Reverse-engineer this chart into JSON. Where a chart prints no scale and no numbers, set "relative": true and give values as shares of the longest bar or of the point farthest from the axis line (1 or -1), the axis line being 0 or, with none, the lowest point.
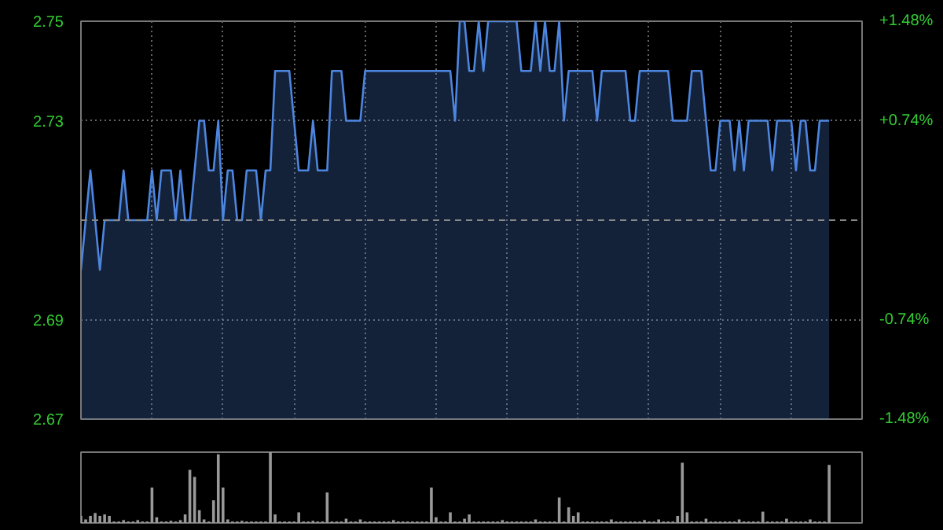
{
  "chart_data": [
    {
      "type": "area",
      "categories": [
        null,
        null,
        null,
        null,
        null,
        null,
        null,
        null,
        null,
        null,
        null,
        null,
        null,
        null,
        null,
        null,
        null,
        null,
        null,
        null,
        null,
        null,
        null,
        null,
        null,
        null,
        null,
        null,
        null,
        null,
        null,
        null,
        null,
        null,
        null,
        null,
        null,
        null,
        null,
        null,
        null,
        null,
        null,
        null,
        null,
        null,
        null,
        null,
        null,
        null,
        null,
        null,
        null,
        null,
        null,
        null,
        null,
        null,
        null,
        null,
        null,
        null,
        null,
        null,
        null,
        null,
        null,
        null,
        null,
        null,
        null,
        null,
        null,
        null,
        null,
        null,
        null,
        null,
        null,
        null,
        null,
        null,
        null,
        null,
        null,
        null,
        null,
        null,
        null,
        null,
        null,
        null,
        null,
        null,
        null,
        null,
        null,
        null,
        null,
        null,
        null,
        null,
        null,
        null,
        null,
        null,
        null,
        null,
        null,
        null,
        null,
        null,
        null,
        null,
        null,
        null,
        null,
        null,
        null,
        null,
        null,
        null,
        null,
        null,
        null,
        null,
        null,
        null,
        null,
        null,
        null,
        null,
        null,
        null,
        null,
        null,
        null,
        null,
        null,
        null,
        null,
        null,
        null,
        null,
        null,
        null,
        null,
        null,
        null,
        null,
        null,
        null,
        null,
        null,
        null,
        null,
        null,
        null,
        null
      ],
      "ylim": [
        2.67,
        2.75
      ],
      "yticks": [
        2.67,
        2.69,
        2.73,
        2.75
      ],
      "y2lim": [
        -1.48,
        1.48
      ],
      "y2ticks": [
        {
          "value": -1.48,
          "label": "-1.48%"
        },
        {
          "value": -0.74,
          "label": "-0.74%"
        },
        {
          "value": 0.74,
          "label": "+0.74%"
        },
        {
          "value": 1.48,
          "label": "+1.48%"
        }
      ],
      "grid": true,
      "ref_lines": [
        {
          "axis": "y",
          "value": 2.71,
          "color": "#888888",
          "line_style": "dashed"
        }
      ],
      "series": [
        {
          "color": "#4d86e0",
          "values": [
            2.7,
            2.71,
            2.72,
            2.71,
            2.7,
            2.71,
            2.71,
            2.71,
            2.71,
            2.72,
            2.71,
            2.71,
            2.71,
            2.71,
            2.71,
            2.72,
            2.71,
            2.72,
            2.72,
            2.72,
            2.71,
            2.72,
            2.71,
            2.71,
            2.72,
            2.73,
            2.73,
            2.72,
            2.72,
            2.73,
            2.71,
            2.72,
            2.72,
            2.71,
            2.71,
            2.72,
            2.72,
            2.72,
            2.71,
            2.72,
            2.72,
            2.74,
            2.74,
            2.74,
            2.74,
            2.73,
            2.72,
            2.72,
            2.72,
            2.73,
            2.72,
            2.72,
            2.72,
            2.74,
            2.74,
            2.74,
            2.73,
            2.73,
            2.73,
            2.73,
            2.74,
            2.74,
            2.74,
            2.74,
            2.74,
            2.74,
            2.74,
            2.74,
            2.74,
            2.74,
            2.74,
            2.74,
            2.74,
            2.74,
            2.74,
            2.74,
            2.74,
            2.74,
            2.74,
            2.73,
            2.75,
            2.75,
            2.74,
            2.74,
            2.75,
            2.74,
            2.75,
            2.75,
            2.75,
            2.75,
            2.75,
            2.75,
            2.75,
            2.74,
            2.74,
            2.74,
            2.75,
            2.74,
            2.75,
            2.74,
            2.74,
            2.75,
            2.73,
            2.74,
            2.74,
            2.74,
            2.74,
            2.74,
            2.74,
            2.73,
            2.74,
            2.74,
            2.74,
            2.74,
            2.74,
            2.74,
            2.73,
            2.73,
            2.74,
            2.74,
            2.74,
            2.74,
            2.74,
            2.74,
            2.74,
            2.73,
            2.73,
            2.73,
            2.73,
            2.74,
            2.74,
            2.74,
            2.73,
            2.72,
            2.72,
            2.73,
            2.73,
            2.73,
            2.72,
            2.73,
            2.72,
            2.73,
            2.73,
            2.73,
            2.73,
            2.73,
            2.72,
            2.73,
            2.73,
            2.73,
            2.73,
            2.72,
            2.73,
            2.73,
            2.72,
            2.72,
            2.73,
            2.73,
            2.73
          ]
        }
      ]
    },
    {
      "type": "bar",
      "relative": true,
      "categories": [
        null,
        null,
        null,
        null,
        null,
        null,
        null,
        null,
        null,
        null,
        null,
        null,
        null,
        null,
        null,
        null,
        null,
        null,
        null,
        null,
        null,
        null,
        null,
        null,
        null,
        null,
        null,
        null,
        null,
        null,
        null,
        null,
        null,
        null,
        null,
        null,
        null,
        null,
        null,
        null,
        null,
        null,
        null,
        null,
        null,
        null,
        null,
        null,
        null,
        null,
        null,
        null,
        null,
        null,
        null,
        null,
        null,
        null,
        null,
        null,
        null,
        null,
        null,
        null,
        null,
        null,
        null,
        null,
        null,
        null,
        null,
        null,
        null,
        null,
        null,
        null,
        null,
        null,
        null,
        null,
        null,
        null,
        null,
        null,
        null,
        null,
        null,
        null,
        null,
        null,
        null,
        null,
        null,
        null,
        null,
        null,
        null,
        null,
        null,
        null,
        null,
        null,
        null,
        null,
        null,
        null,
        null,
        null,
        null,
        null,
        null,
        null,
        null,
        null,
        null,
        null,
        null,
        null,
        null,
        null,
        null,
        null,
        null,
        null,
        null,
        null,
        null,
        null,
        null,
        null,
        null,
        null,
        null,
        null,
        null,
        null,
        null,
        null,
        null,
        null,
        null,
        null,
        null,
        null,
        null,
        null,
        null,
        null,
        null,
        null,
        null,
        null,
        null,
        null,
        null,
        null,
        null,
        null,
        null
      ],
      "series": [
        {
          "color": "#999999",
          "values": [
            0.1,
            0.05,
            0.1,
            0.14,
            0.1,
            0.12,
            0.1,
            0.02,
            0.02,
            0.04,
            0.02,
            0.02,
            0.04,
            0.02,
            0.02,
            0.5,
            0.08,
            0.02,
            0.02,
            0.03,
            0.02,
            0.04,
            0.12,
            0.75,
            0.65,
            0.18,
            0.05,
            0.02,
            0.32,
            0.97,
            0.5,
            0.05,
            0.02,
            0.02,
            0.03,
            0.02,
            0.02,
            0.02,
            0.02,
            0.02,
            1.0,
            0.12,
            0.02,
            0.02,
            0.02,
            0.02,
            0.15,
            0.02,
            0.02,
            0.03,
            0.02,
            0.02,
            0.43,
            0.02,
            0.02,
            0.02,
            0.06,
            0.02,
            0.02,
            0.05,
            0.02,
            0.02,
            0.02,
            0.02,
            0.02,
            0.02,
            0.04,
            0.02,
            0.02,
            0.02,
            0.02,
            0.02,
            0.02,
            0.02,
            0.5,
            0.08,
            0.02,
            0.02,
            0.15,
            0.02,
            0.02,
            0.06,
            0.12,
            0.02,
            0.02,
            0.02,
            0.02,
            0.02,
            0.02,
            0.04,
            0.02,
            0.02,
            0.02,
            0.02,
            0.02,
            0.02,
            0.05,
            0.02,
            0.02,
            0.02,
            0.02,
            0.36,
            0.02,
            0.22,
            0.1,
            0.15,
            0.02,
            0.02,
            0.02,
            0.02,
            0.02,
            0.02,
            0.05,
            0.02,
            0.02,
            0.02,
            0.02,
            0.02,
            0.02,
            0.04,
            0.02,
            0.02,
            0.05,
            0.02,
            0.02,
            0.02,
            0.1,
            0.85,
            0.15,
            0.02,
            0.02,
            0.02,
            0.06,
            0.02,
            0.02,
            0.02,
            0.02,
            0.02,
            0.02,
            0.05,
            0.02,
            0.02,
            0.02,
            0.02,
            0.16,
            0.02,
            0.02,
            0.02,
            0.02,
            0.06,
            0.02,
            0.02,
            0.02,
            0.02,
            0.05,
            0.02,
            0.02,
            0.02,
            0.82
          ]
        }
      ]
    }
  ]
}
